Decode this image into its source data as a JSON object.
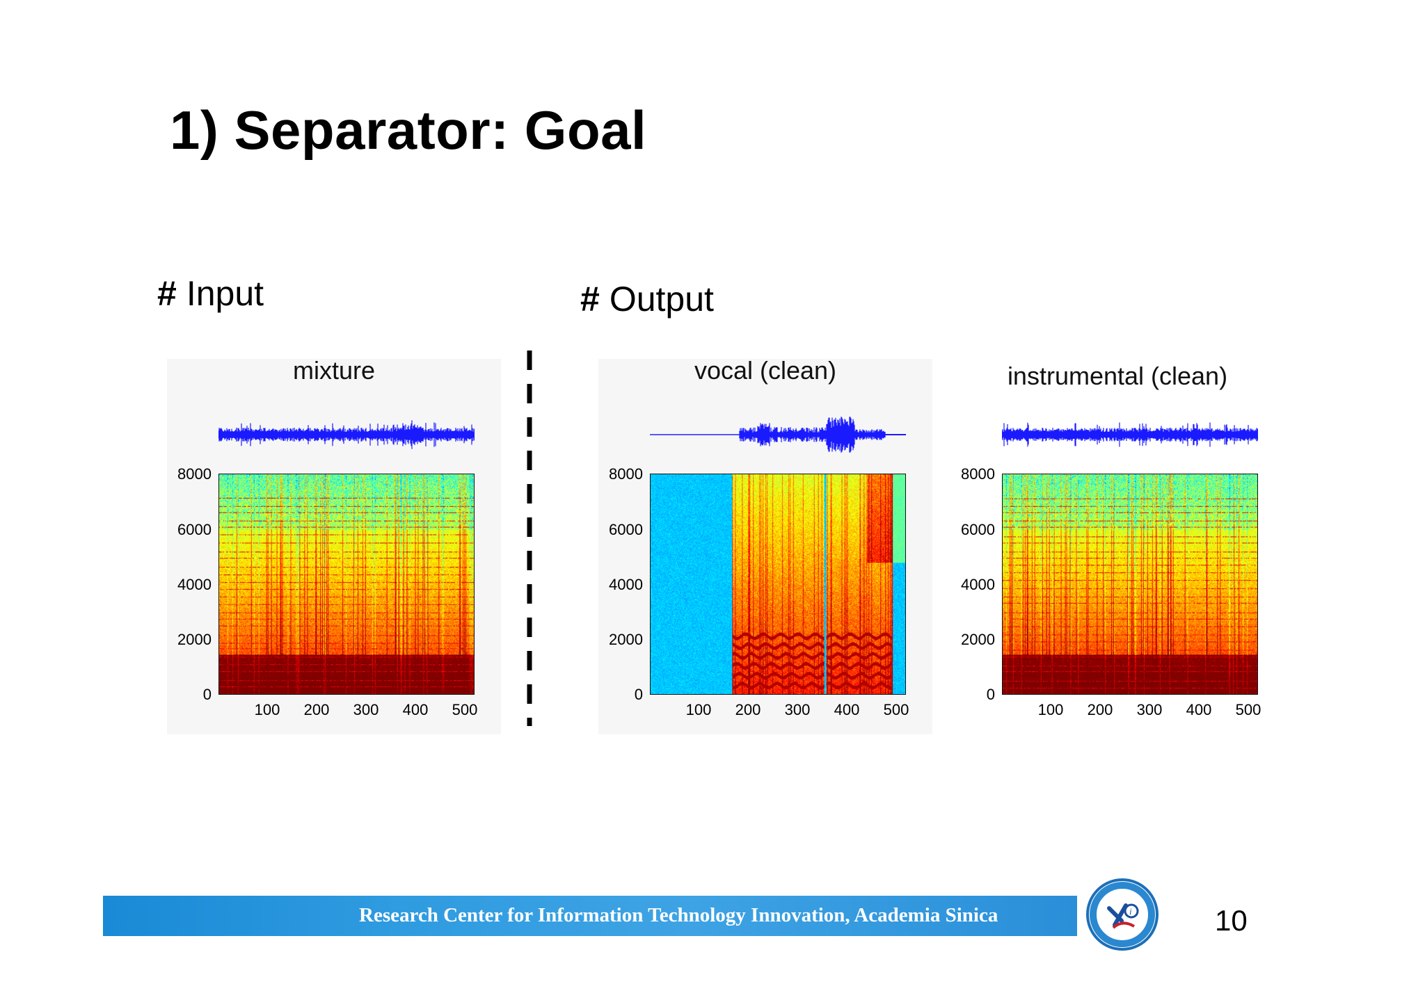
{
  "slide": {
    "title": "1) Separator: Goal",
    "page_number": "10",
    "footer": "Research Center for Information Technology Innovation, Academia Sinica"
  },
  "sections": {
    "input": {
      "hash": "#",
      "label": "Input"
    },
    "output": {
      "hash": "#",
      "label": "Output"
    }
  },
  "panels": [
    {
      "id": "mixture",
      "title": "mixture",
      "waveform_color": "#1a1aff",
      "vocal_only": false
    },
    {
      "id": "vocal",
      "title": "vocal (clean)",
      "waveform_color": "#1a1aff",
      "vocal_only": true
    },
    {
      "id": "instrumental",
      "title": "instrumental (clean)",
      "waveform_color": "#1a1aff",
      "vocal_only": false
    }
  ],
  "axes": {
    "y_ticks": [
      "8000",
      "6000",
      "4000",
      "2000",
      "0"
    ],
    "x_ticks": [
      "100",
      "200",
      "300",
      "400",
      "500"
    ],
    "ylim": [
      0,
      8000
    ],
    "xlim": [
      0,
      512
    ]
  },
  "colors": {
    "footer_blue": "#2f9be0",
    "divider": "#000000",
    "spectrogram_high": "#b00000",
    "spectrogram_low": "#2ec4f0"
  }
}
